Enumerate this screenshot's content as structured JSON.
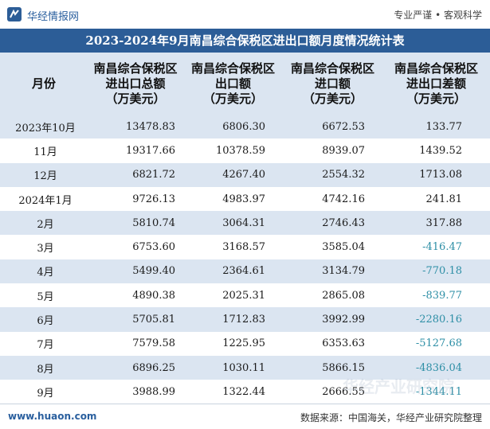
{
  "header": {
    "brand": "华经情报网",
    "slogan": "专业严谨 • 客观科学"
  },
  "title": "2023-2024年9月南昌综合保税区进出口额月度情况统计表",
  "table": {
    "columns": [
      {
        "line1": "月份",
        "line2": "",
        "line3": ""
      },
      {
        "line1": "南昌综合保税区",
        "line2": "进出口总额",
        "line3": "（万美元）"
      },
      {
        "line1": "南昌综合保税区",
        "line2": "出口额",
        "line3": "（万美元）"
      },
      {
        "line1": "南昌综合保税区",
        "line2": "进口额",
        "line3": "（万美元）"
      },
      {
        "line1": "南昌综合保税区",
        "line2": "进出口差额",
        "line3": "（万美元）"
      }
    ],
    "rows": [
      {
        "month": "2023年10月",
        "total": "13478.83",
        "export": "6806.30",
        "import": "6672.53",
        "balance": "133.77"
      },
      {
        "month": "11月",
        "total": "19317.66",
        "export": "10378.59",
        "import": "8939.07",
        "balance": "1439.52"
      },
      {
        "month": "12月",
        "total": "6821.72",
        "export": "4267.40",
        "import": "2554.32",
        "balance": "1713.08"
      },
      {
        "month": "2024年1月",
        "total": "9726.13",
        "export": "4983.97",
        "import": "4742.16",
        "balance": "241.81"
      },
      {
        "month": "2月",
        "total": "5810.74",
        "export": "3064.31",
        "import": "2746.43",
        "balance": "317.88"
      },
      {
        "month": "3月",
        "total": "6753.60",
        "export": "3168.57",
        "import": "3585.04",
        "balance": "-416.47"
      },
      {
        "month": "4月",
        "total": "5499.40",
        "export": "2364.61",
        "import": "3134.79",
        "balance": "-770.18"
      },
      {
        "month": "5月",
        "total": "4890.38",
        "export": "2025.31",
        "import": "2865.08",
        "balance": "-839.77"
      },
      {
        "month": "6月",
        "total": "5705.81",
        "export": "1712.83",
        "import": "3992.99",
        "balance": "-2280.16"
      },
      {
        "month": "7月",
        "total": "7579.58",
        "export": "1225.95",
        "import": "6353.63",
        "balance": "-5127.68"
      },
      {
        "month": "8月",
        "total": "6896.25",
        "export": "1030.11",
        "import": "5866.15",
        "balance": "-4836.04"
      },
      {
        "month": "9月",
        "total": "3988.99",
        "export": "1322.44",
        "import": "2666.55",
        "balance": "-1344.11"
      }
    ]
  },
  "footer": {
    "site": "www.huaon.com",
    "source": "数据来源：中国海关，华经产业研究院整理"
  },
  "watermark": "华经产业研究院",
  "colors": {
    "title_bg": "#2c5d97",
    "stripe": "#dbe5f1",
    "negative": "#2e8fa6"
  }
}
